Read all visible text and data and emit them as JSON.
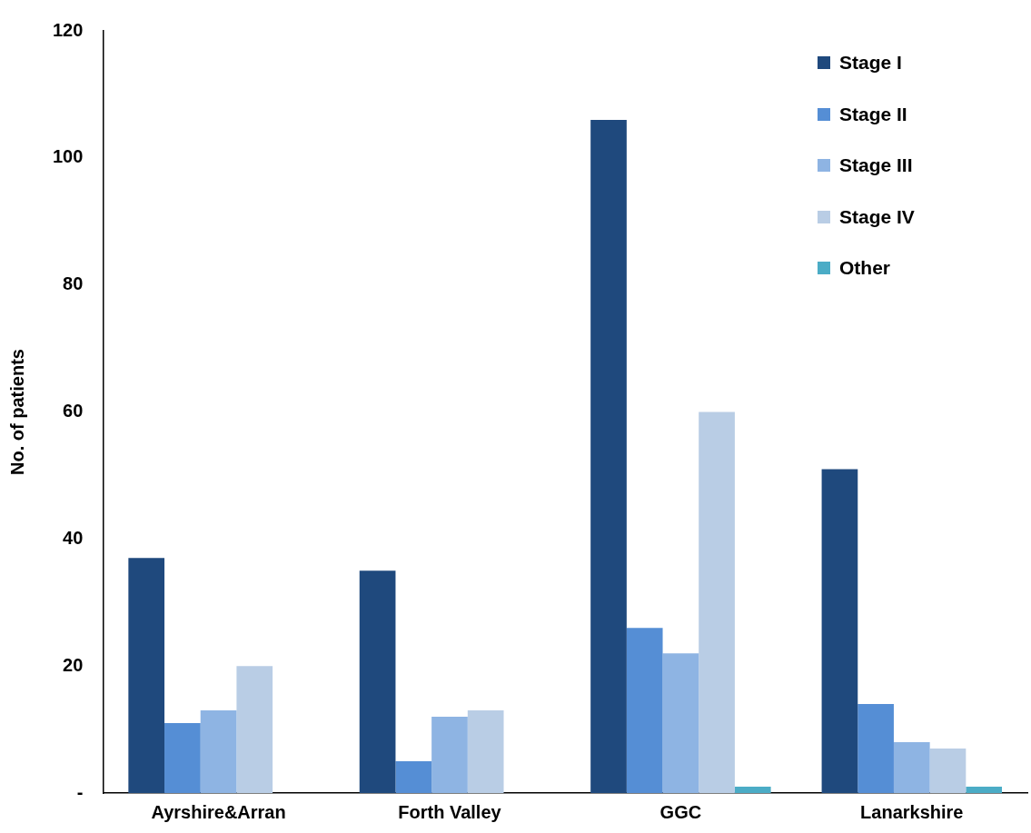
{
  "chart_data": {
    "type": "bar",
    "ylabel": "No. of patients",
    "categories": [
      "Ayrshire&Arran",
      "Forth Valley",
      "GGC",
      "Lanarkshire"
    ],
    "series": [
      {
        "name": "Stage I",
        "color": "#1f497d",
        "values": [
          37,
          35,
          106,
          51
        ]
      },
      {
        "name": "Stage II",
        "color": "#558ed5",
        "values": [
          11,
          5,
          26,
          14
        ]
      },
      {
        "name": "Stage III",
        "color": "#8eb4e3",
        "values": [
          13,
          12,
          22,
          8
        ]
      },
      {
        "name": "Stage IV",
        "color": "#b9cde5",
        "values": [
          20,
          13,
          60,
          7
        ]
      },
      {
        "name": "Other",
        "color": "#4bacc6",
        "values": [
          0,
          0,
          1,
          1
        ]
      }
    ],
    "ylim": [
      0,
      120
    ],
    "yticks": [
      {
        "value": 0,
        "label": "-"
      },
      20,
      40,
      60,
      80,
      100,
      120
    ],
    "grid": false,
    "legend": "top right"
  }
}
